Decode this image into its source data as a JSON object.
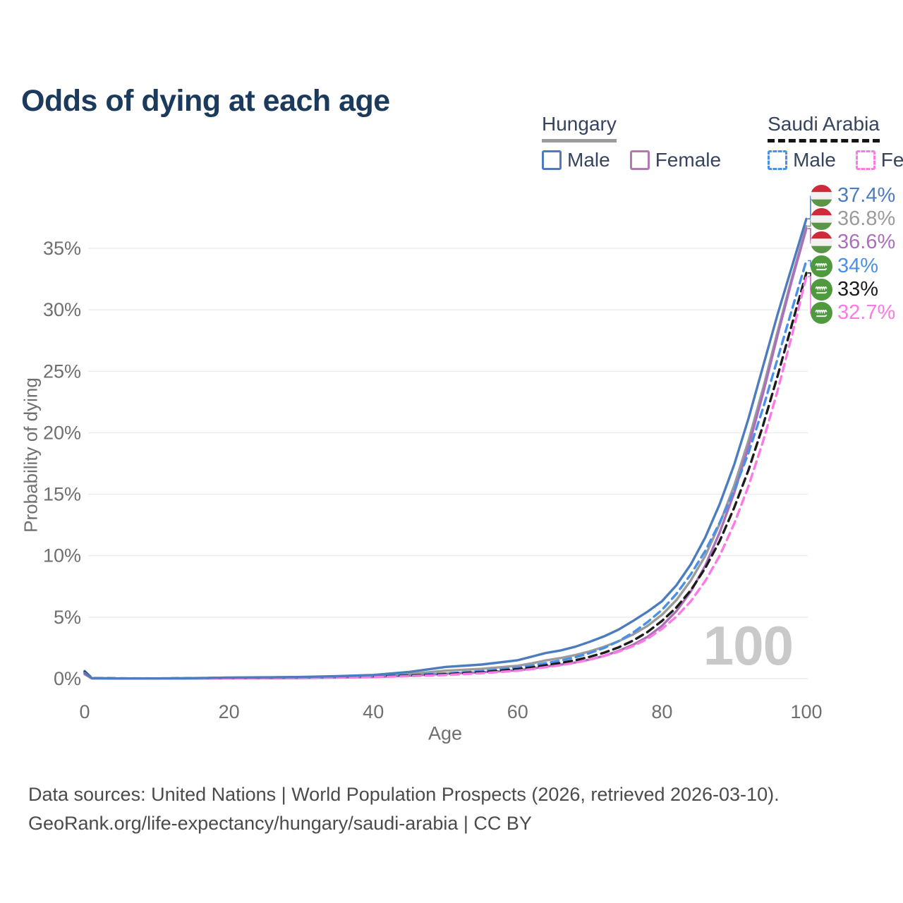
{
  "title": "Odds of dying at each age",
  "watermark_age": "100",
  "legend": {
    "groups": [
      {
        "title": "Hungary",
        "underline_style": "solid",
        "underline_color": "#9b9b9b",
        "items": [
          {
            "label": "Male",
            "color": "#4c7cbe",
            "dashed": false
          },
          {
            "label": "Female",
            "color": "#b379b3",
            "dashed": false
          }
        ]
      },
      {
        "title": "Saudi Arabia",
        "underline_style": "dashed",
        "underline_color": "#141414",
        "items": [
          {
            "label": "Male",
            "color": "#4a90e8",
            "dashed": true
          },
          {
            "label": "Female",
            "color": "#fb7ae4",
            "dashed": true
          }
        ]
      }
    ]
  },
  "footer": {
    "line1": "Data sources: United Nations | World Population Prospects (2026, retrieved 2026-03-10).",
    "line2": "GeoRank.org/life-expectancy/hungary/saudi-arabia | CC BY"
  },
  "chart_data": {
    "type": "line",
    "title": "Odds of dying at each age",
    "xlabel": "Age",
    "ylabel": "Probability of dying",
    "x_range": [
      0,
      100
    ],
    "y_range_percent": [
      0,
      39
    ],
    "x_ticks": [
      0,
      20,
      40,
      60,
      80,
      100
    ],
    "y_ticks_percent": [
      0,
      5,
      10,
      15,
      20,
      25,
      30,
      35
    ],
    "grid": "horizontal",
    "current_age_marker": "100",
    "ages": [
      0,
      1,
      5,
      10,
      15,
      20,
      25,
      30,
      35,
      40,
      45,
      50,
      55,
      60,
      62,
      64,
      66,
      68,
      70,
      72,
      74,
      76,
      78,
      80,
      82,
      84,
      86,
      88,
      90,
      92,
      94,
      96,
      98,
      100
    ],
    "series": [
      {
        "name": "Hungary Male",
        "country": "Hungary",
        "sex": "Male",
        "flag": "hu",
        "color": "#4c7cbe",
        "dashed": false,
        "end_label": "37.4%",
        "values_percent": [
          0.48,
          0.04,
          0.02,
          0.02,
          0.04,
          0.09,
          0.11,
          0.14,
          0.2,
          0.3,
          0.55,
          0.95,
          1.15,
          1.5,
          1.8,
          2.1,
          2.3,
          2.6,
          3.0,
          3.45,
          4.0,
          4.7,
          5.45,
          6.3,
          7.6,
          9.3,
          11.5,
          14.2,
          17.4,
          21.2,
          25.4,
          29.6,
          33.5,
          37.4
        ]
      },
      {
        "name": "Hungary Both sexes",
        "country": "Hungary",
        "sex": "Both",
        "flag": "hu",
        "color": "#9b9b9b",
        "dashed": false,
        "end_label": "36.8%",
        "values_percent": [
          0.42,
          0.03,
          0.02,
          0.02,
          0.03,
          0.06,
          0.08,
          0.1,
          0.14,
          0.21,
          0.38,
          0.65,
          0.8,
          1.05,
          1.25,
          1.5,
          1.68,
          1.92,
          2.22,
          2.6,
          3.05,
          3.6,
          4.3,
          5.2,
          6.4,
          8.0,
          10.0,
          12.6,
          15.7,
          19.4,
          23.6,
          28.2,
          32.6,
          36.8
        ]
      },
      {
        "name": "Hungary Female",
        "country": "Hungary",
        "sex": "Female",
        "flag": "hu",
        "color": "#aa70ba",
        "dashed": false,
        "end_label": "36.6%",
        "values_percent": [
          0.36,
          0.03,
          0.01,
          0.01,
          0.02,
          0.03,
          0.04,
          0.06,
          0.09,
          0.13,
          0.24,
          0.4,
          0.52,
          0.68,
          0.82,
          1.0,
          1.14,
          1.32,
          1.56,
          1.86,
          2.26,
          2.76,
          3.4,
          4.3,
          5.5,
          7.1,
          9.2,
          11.9,
          15.1,
          18.9,
          23.2,
          27.9,
          32.4,
          36.6
        ]
      },
      {
        "name": "Saudi Arabia Male",
        "country": "Saudi Arabia",
        "sex": "Male",
        "flag": "sa",
        "color": "#4a90e8",
        "dashed": true,
        "end_label": "34%",
        "values_percent": [
          0.62,
          0.05,
          0.03,
          0.02,
          0.04,
          0.08,
          0.1,
          0.12,
          0.15,
          0.2,
          0.28,
          0.42,
          0.62,
          0.9,
          1.06,
          1.26,
          1.48,
          1.74,
          2.08,
          2.5,
          3.05,
          3.75,
          4.6,
          5.6,
          6.9,
          8.5,
          10.4,
          12.7,
          15.3,
          18.4,
          22.0,
          26.0,
          30.0,
          34.0
        ]
      },
      {
        "name": "Saudi Arabia Both sexes",
        "country": "Saudi Arabia",
        "sex": "Both",
        "flag": "sa",
        "color": "#1c1c1c",
        "dashed": true,
        "end_label": "33%",
        "values_percent": [
          0.55,
          0.05,
          0.02,
          0.02,
          0.03,
          0.06,
          0.08,
          0.1,
          0.13,
          0.17,
          0.24,
          0.36,
          0.52,
          0.78,
          0.92,
          1.1,
          1.28,
          1.5,
          1.78,
          2.12,
          2.55,
          3.1,
          3.8,
          4.7,
          5.8,
          7.2,
          9.0,
          11.2,
          13.9,
          17.0,
          20.6,
          24.6,
          28.8,
          33.0
        ]
      },
      {
        "name": "Saudi Arabia Female",
        "country": "Saudi Arabia",
        "sex": "Female",
        "flag": "sa",
        "color": "#fb7ae4",
        "dashed": true,
        "end_label": "32.7%",
        "values_percent": [
          0.48,
          0.04,
          0.02,
          0.01,
          0.02,
          0.04,
          0.06,
          0.08,
          0.1,
          0.14,
          0.2,
          0.3,
          0.44,
          0.65,
          0.78,
          0.94,
          1.1,
          1.3,
          1.55,
          1.85,
          2.2,
          2.65,
          3.25,
          4.05,
          5.05,
          6.3,
          7.95,
          10.0,
          12.6,
          15.7,
          19.3,
          23.4,
          27.9,
          32.7
        ]
      }
    ]
  }
}
